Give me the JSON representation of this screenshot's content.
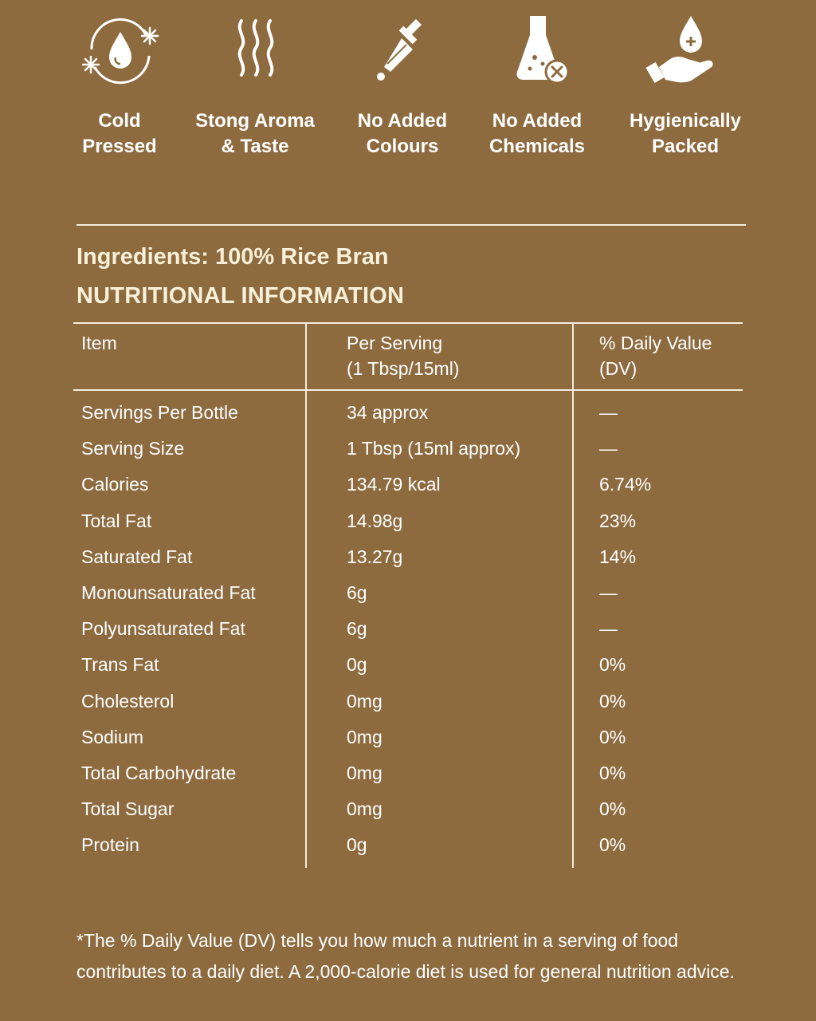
{
  "features": [
    {
      "label": "Cold\nPressed",
      "icon": "cold-pressed-icon"
    },
    {
      "label": "Stong Aroma\n& Taste",
      "icon": "aroma-icon"
    },
    {
      "label": "No Added\nColours",
      "icon": "dropper-icon"
    },
    {
      "label": "No Added\nChemicals",
      "icon": "flask-icon"
    },
    {
      "label": "Hygienically\nPacked",
      "icon": "hand-drop-icon"
    }
  ],
  "ingredients": "Ingredients: 100% Rice Bran",
  "nutrition_title": "NUTRITIONAL INFORMATION",
  "table": {
    "headers": {
      "item": "Item",
      "per_serving": "Per Serving\n(1 Tbsp/15ml)",
      "daily_value": "% Daily Value\n(DV)"
    },
    "rows": [
      [
        "Servings Per Bottle",
        "34 approx",
        "—"
      ],
      [
        "Serving Size",
        "1 Tbsp (15ml approx)",
        "—"
      ],
      [
        "Calories",
        "134.79 kcal",
        "6.74%"
      ],
      [
        "Total Fat",
        "14.98g",
        "23%"
      ],
      [
        "Saturated Fat",
        "13.27g",
        "14%"
      ],
      [
        "Monounsaturated Fat",
        "6g",
        "—"
      ],
      [
        "Polyunsaturated Fat",
        "6g",
        "—"
      ],
      [
        "Trans Fat",
        "0g",
        "0%"
      ],
      [
        "Cholesterol",
        "0mg",
        "0%"
      ],
      [
        "Sodium",
        "0mg",
        "0%"
      ],
      [
        "Total Carbohydrate",
        "0mg",
        "0%"
      ],
      [
        "Total Sugar",
        "0mg",
        "0%"
      ],
      [
        "Protein",
        "0g",
        "0%"
      ]
    ]
  },
  "footnote": "*The % Daily Value (DV) tells you how much a nutrient in a serving of food contributes to a daily diet. A 2,000-calorie diet is used for general nutrition advice.",
  "colors": {
    "background": "#8d6b3f",
    "heading": "#f8f0d8",
    "text": "#ffffff"
  }
}
